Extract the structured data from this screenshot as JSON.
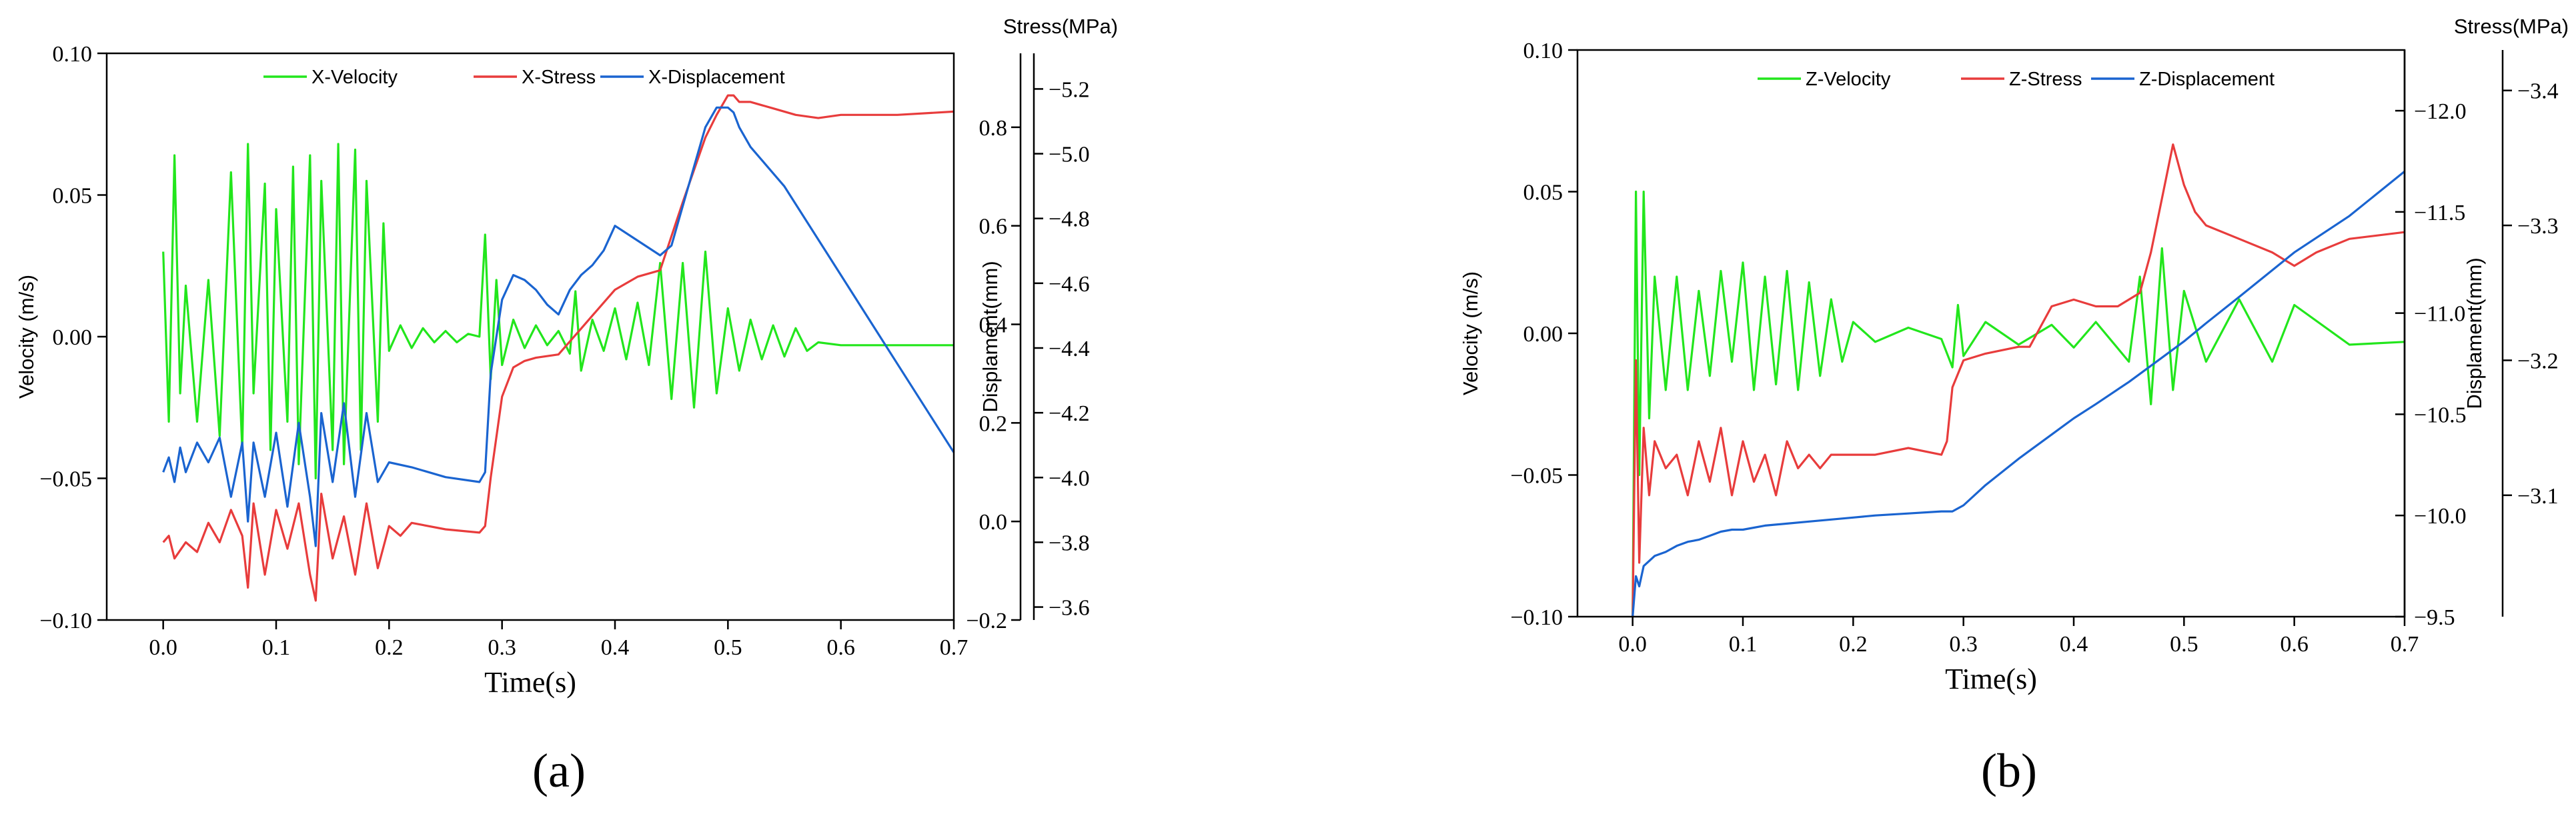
{
  "colors": {
    "velocity": "#22e61c",
    "stress": "#e83c3c",
    "displacement": "#1a64d0"
  },
  "chart_data": [
    {
      "type": "line",
      "label": "(a)",
      "xlabel": "Time(s)",
      "ylabel": "Velocity (m/s)",
      "ylabel_right1": "Displament(mm)",
      "ylabel_right2": "Stress(MPa)",
      "xlim": [
        -0.05,
        0.7
      ],
      "ylim": [
        -0.1,
        0.1
      ],
      "yright1_lim": [
        -0.2,
        0.95
      ],
      "yright2_lim": [
        -3.56,
        -5.31
      ],
      "x_ticks": [
        "0.0",
        "0.1",
        "0.2",
        "0.3",
        "0.4",
        "0.5",
        "0.6",
        "0.7"
      ],
      "y_ticks": [
        "−0.10",
        "−0.05",
        "0.00",
        "0.05",
        "0.10"
      ],
      "y_ticks_values": [
        -0.1,
        -0.05,
        0,
        0.05,
        0.1
      ],
      "yright1_ticks": [
        "−0.2",
        "0.0",
        "0.2",
        "0.4",
        "0.6",
        "0.8"
      ],
      "yright1_ticks_values": [
        -0.2,
        0,
        0.2,
        0.4,
        0.6,
        0.8
      ],
      "yright2_ticks": [
        "−3.6",
        "−3.8",
        "−4.0",
        "−4.2",
        "−4.4",
        "−4.6",
        "−4.8",
        "−5.0",
        "−5.2"
      ],
      "yright2_ticks_values": [
        -3.6,
        -3.8,
        -4.0,
        -4.2,
        -4.4,
        -4.6,
        -4.8,
        -5.0,
        -5.2
      ],
      "series": [
        {
          "name": "X-Velocity",
          "axis": "left",
          "x": [
            0,
            0.005,
            0.01,
            0.015,
            0.02,
            0.03,
            0.04,
            0.05,
            0.06,
            0.07,
            0.075,
            0.08,
            0.09,
            0.095,
            0.1,
            0.11,
            0.115,
            0.12,
            0.13,
            0.135,
            0.14,
            0.15,
            0.155,
            0.16,
            0.17,
            0.175,
            0.18,
            0.19,
            0.195,
            0.2,
            0.21,
            0.22,
            0.23,
            0.24,
            0.25,
            0.26,
            0.27,
            0.28,
            0.285,
            0.29,
            0.295,
            0.3,
            0.31,
            0.32,
            0.33,
            0.34,
            0.35,
            0.36,
            0.365,
            0.37,
            0.38,
            0.39,
            0.4,
            0.41,
            0.42,
            0.43,
            0.44,
            0.45,
            0.46,
            0.47,
            0.48,
            0.49,
            0.5,
            0.51,
            0.52,
            0.53,
            0.54,
            0.55,
            0.56,
            0.57,
            0.58,
            0.6,
            0.65,
            0.7
          ],
          "y": [
            0.03,
            -0.03,
            0.064,
            -0.02,
            0.018,
            -0.03,
            0.02,
            -0.035,
            0.058,
            -0.04,
            0.068,
            -0.02,
            0.054,
            -0.04,
            0.045,
            -0.03,
            0.06,
            -0.045,
            0.064,
            -0.05,
            0.055,
            -0.04,
            0.068,
            -0.045,
            0.066,
            -0.04,
            0.055,
            -0.03,
            0.04,
            -0.005,
            0.004,
            -0.004,
            0.003,
            -0.002,
            0.002,
            -0.002,
            0.001,
            0.0,
            0.036,
            -0.015,
            0.02,
            -0.01,
            0.006,
            -0.004,
            0.004,
            -0.003,
            0.002,
            -0.006,
            0.016,
            -0.012,
            0.006,
            -0.005,
            0.01,
            -0.008,
            0.012,
            -0.01,
            0.026,
            -0.022,
            0.026,
            -0.025,
            0.03,
            -0.02,
            0.01,
            -0.012,
            0.006,
            -0.008,
            0.004,
            -0.007,
            0.003,
            -0.005,
            -0.002,
            -0.003,
            -0.003,
            -0.003
          ]
        },
        {
          "name": "X-Stress",
          "axis": "right2",
          "x": [
            0,
            0.005,
            0.01,
            0.02,
            0.03,
            0.04,
            0.05,
            0.06,
            0.07,
            0.075,
            0.08,
            0.09,
            0.1,
            0.11,
            0.12,
            0.13,
            0.135,
            0.14,
            0.15,
            0.16,
            0.17,
            0.18,
            0.19,
            0.2,
            0.21,
            0.22,
            0.25,
            0.28,
            0.285,
            0.29,
            0.3,
            0.31,
            0.32,
            0.33,
            0.35,
            0.37,
            0.38,
            0.4,
            0.42,
            0.44,
            0.46,
            0.48,
            0.49,
            0.5,
            0.505,
            0.51,
            0.52,
            0.54,
            0.56,
            0.58,
            0.6,
            0.65,
            0.7
          ],
          "y": [
            -3.8,
            -3.82,
            -3.75,
            -3.8,
            -3.77,
            -3.86,
            -3.8,
            -3.9,
            -3.82,
            -3.66,
            -3.92,
            -3.7,
            -3.9,
            -3.78,
            -3.92,
            -3.7,
            -3.62,
            -3.95,
            -3.75,
            -3.88,
            -3.7,
            -3.92,
            -3.72,
            -3.85,
            -3.82,
            -3.86,
            -3.84,
            -3.83,
            -3.85,
            -4.0,
            -4.25,
            -4.34,
            -4.36,
            -4.37,
            -4.38,
            -4.46,
            -4.5,
            -4.58,
            -4.62,
            -4.64,
            -4.85,
            -5.05,
            -5.12,
            -5.18,
            -5.18,
            -5.16,
            -5.16,
            -5.14,
            -5.12,
            -5.11,
            -5.12,
            -5.12,
            -5.13
          ]
        },
        {
          "name": "X-Displacement",
          "axis": "right1",
          "x": [
            0,
            0.005,
            0.01,
            0.015,
            0.02,
            0.03,
            0.04,
            0.05,
            0.06,
            0.07,
            0.075,
            0.08,
            0.09,
            0.1,
            0.11,
            0.12,
            0.13,
            0.135,
            0.14,
            0.15,
            0.16,
            0.17,
            0.18,
            0.19,
            0.2,
            0.22,
            0.25,
            0.28,
            0.285,
            0.29,
            0.3,
            0.31,
            0.32,
            0.33,
            0.34,
            0.35,
            0.36,
            0.37,
            0.38,
            0.39,
            0.4,
            0.42,
            0.44,
            0.45,
            0.46,
            0.47,
            0.48,
            0.49,
            0.5,
            0.505,
            0.51,
            0.52,
            0.55,
            0.6,
            0.65,
            0.7
          ],
          "y": [
            0.1,
            0.13,
            0.08,
            0.15,
            0.1,
            0.16,
            0.12,
            0.17,
            0.05,
            0.16,
            0.0,
            0.16,
            0.05,
            0.18,
            0.03,
            0.2,
            0.05,
            -0.05,
            0.22,
            0.08,
            0.24,
            0.05,
            0.22,
            0.08,
            0.12,
            0.11,
            0.09,
            0.08,
            0.1,
            0.3,
            0.45,
            0.5,
            0.49,
            0.47,
            0.44,
            0.42,
            0.47,
            0.5,
            0.52,
            0.55,
            0.6,
            0.57,
            0.54,
            0.56,
            0.64,
            0.72,
            0.8,
            0.84,
            0.84,
            0.83,
            0.8,
            0.76,
            0.68,
            0.5,
            0.32,
            0.14
          ]
        }
      ]
    },
    {
      "type": "line",
      "label": "(b)",
      "xlabel": "Time(s)",
      "ylabel": "Velocity (m/s)",
      "ylabel_right1": "Displament(mm)",
      "ylabel_right2": "Stress(MPa)",
      "xlim": [
        -0.05,
        0.7
      ],
      "ylim": [
        -0.1,
        0.1
      ],
      "yright1_lim": [
        -9.5,
        -12.3
      ],
      "yright2_lim": [
        -3.01,
        -3.43
      ],
      "x_ticks": [
        "0.0",
        "0.1",
        "0.2",
        "0.3",
        "0.4",
        "0.5",
        "0.6",
        "0.7"
      ],
      "y_ticks": [
        "−0.10",
        "−0.05",
        "0.00",
        "0.05",
        "0.10"
      ],
      "y_ticks_values": [
        -0.1,
        -0.05,
        0,
        0.05,
        0.1
      ],
      "yright1_ticks": [
        "−9.5",
        "−10.0",
        "−10.5",
        "−11.0",
        "−11.5",
        "−12.0"
      ],
      "yright1_ticks_values": [
        -9.5,
        -10.0,
        -10.5,
        -11.0,
        -11.5,
        -12.0
      ],
      "yright2_ticks": [
        "−3.1",
        "−3.2",
        "−3.3",
        "−3.4"
      ],
      "yright2_ticks_values": [
        -3.1,
        -3.2,
        -3.3,
        -3.4
      ],
      "series": [
        {
          "name": "Z-Velocity",
          "axis": "left",
          "x": [
            0,
            0.003,
            0.006,
            0.01,
            0.015,
            0.02,
            0.03,
            0.04,
            0.05,
            0.06,
            0.07,
            0.08,
            0.09,
            0.1,
            0.11,
            0.12,
            0.13,
            0.14,
            0.15,
            0.16,
            0.17,
            0.18,
            0.19,
            0.2,
            0.22,
            0.25,
            0.28,
            0.29,
            0.295,
            0.3,
            0.32,
            0.35,
            0.38,
            0.4,
            0.42,
            0.45,
            0.46,
            0.47,
            0.48,
            0.49,
            0.5,
            0.52,
            0.55,
            0.58,
            0.6,
            0.65,
            0.7
          ],
          "y": [
            -0.1,
            0.05,
            -0.05,
            0.05,
            -0.03,
            0.02,
            -0.02,
            0.02,
            -0.02,
            0.015,
            -0.015,
            0.022,
            -0.01,
            0.025,
            -0.02,
            0.02,
            -0.018,
            0.022,
            -0.02,
            0.018,
            -0.015,
            0.012,
            -0.01,
            0.004,
            -0.003,
            0.002,
            -0.002,
            -0.012,
            0.01,
            -0.008,
            0.004,
            -0.004,
            0.003,
            -0.005,
            0.004,
            -0.01,
            0.02,
            -0.025,
            0.03,
            -0.02,
            0.015,
            -0.01,
            0.012,
            -0.01,
            0.01,
            -0.004,
            -0.003
          ]
        },
        {
          "name": "Z-Stress",
          "axis": "right2",
          "x": [
            0,
            0.003,
            0.006,
            0.01,
            0.015,
            0.02,
            0.03,
            0.04,
            0.05,
            0.06,
            0.07,
            0.08,
            0.09,
            0.1,
            0.11,
            0.12,
            0.13,
            0.14,
            0.15,
            0.16,
            0.17,
            0.18,
            0.2,
            0.22,
            0.25,
            0.28,
            0.285,
            0.29,
            0.3,
            0.32,
            0.35,
            0.36,
            0.38,
            0.4,
            0.42,
            0.44,
            0.46,
            0.47,
            0.48,
            0.49,
            0.5,
            0.51,
            0.52,
            0.55,
            0.58,
            0.6,
            0.62,
            0.65,
            0.7
          ],
          "y": [
            -3.01,
            -3.2,
            -3.05,
            -3.15,
            -3.1,
            -3.14,
            -3.12,
            -3.13,
            -3.1,
            -3.14,
            -3.11,
            -3.15,
            -3.1,
            -3.14,
            -3.11,
            -3.13,
            -3.1,
            -3.14,
            -3.12,
            -3.13,
            -3.12,
            -3.13,
            -3.13,
            -3.13,
            -3.135,
            -3.13,
            -3.14,
            -3.18,
            -3.2,
            -3.205,
            -3.21,
            -3.21,
            -3.24,
            -3.245,
            -3.24,
            -3.24,
            -3.25,
            -3.28,
            -3.32,
            -3.36,
            -3.33,
            -3.31,
            -3.3,
            -3.29,
            -3.28,
            -3.27,
            -3.28,
            -3.29,
            -3.295
          ]
        },
        {
          "name": "Z-Displacement",
          "axis": "right1",
          "x": [
            0,
            0.003,
            0.006,
            0.01,
            0.02,
            0.03,
            0.04,
            0.05,
            0.06,
            0.07,
            0.08,
            0.09,
            0.1,
            0.12,
            0.14,
            0.16,
            0.18,
            0.2,
            0.22,
            0.25,
            0.28,
            0.29,
            0.3,
            0.32,
            0.35,
            0.38,
            0.4,
            0.42,
            0.45,
            0.48,
            0.5,
            0.52,
            0.55,
            0.6,
            0.65,
            0.7
          ],
          "y": [
            -9.5,
            -9.7,
            -9.65,
            -9.75,
            -9.8,
            -9.82,
            -9.85,
            -9.87,
            -9.88,
            -9.9,
            -9.92,
            -9.93,
            -9.93,
            -9.95,
            -9.96,
            -9.97,
            -9.98,
            -9.99,
            -10.0,
            -10.01,
            -10.02,
            -10.02,
            -10.05,
            -10.15,
            -10.28,
            -10.4,
            -10.48,
            -10.55,
            -10.66,
            -10.78,
            -10.86,
            -10.95,
            -11.08,
            -11.3,
            -11.48,
            -11.7
          ]
        }
      ]
    }
  ]
}
